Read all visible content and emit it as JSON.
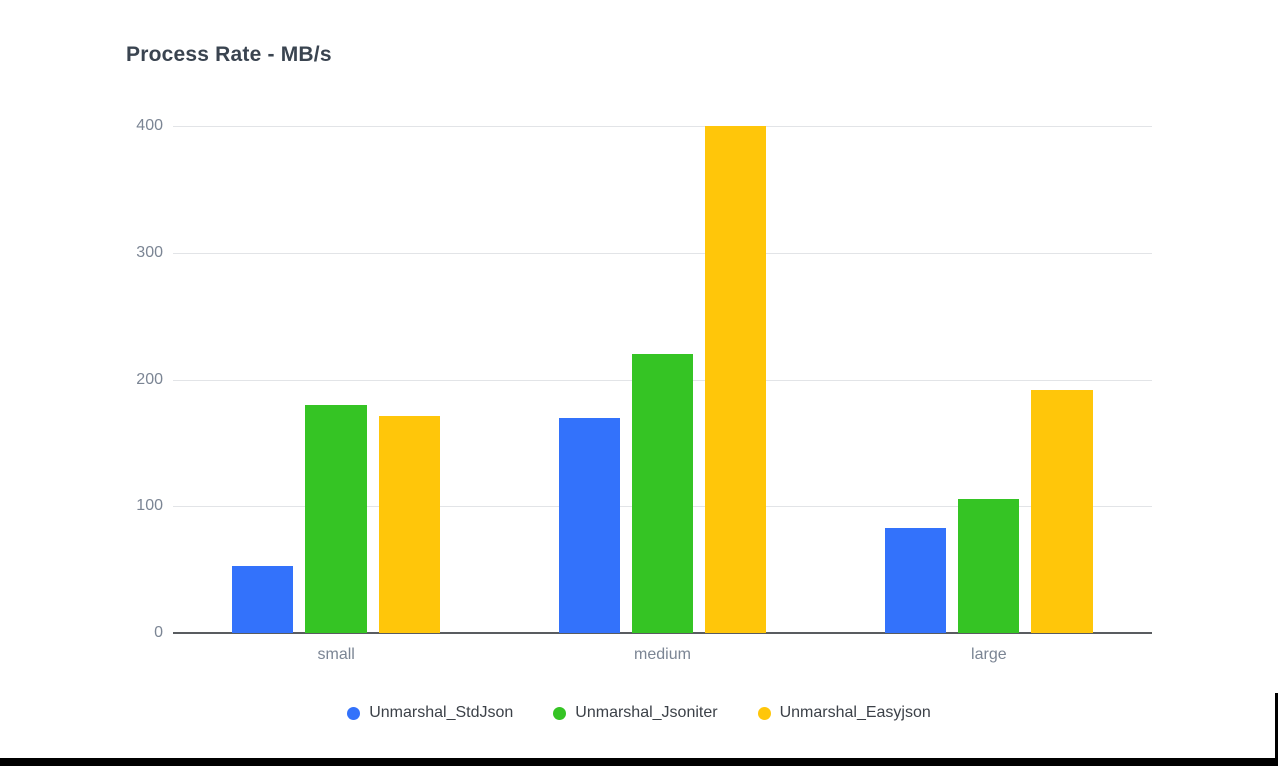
{
  "title": "Process Rate - MB/s",
  "chart_data": {
    "type": "bar",
    "title": "Process Rate - MB/s",
    "xlabel": "",
    "ylabel": "MB/s",
    "categories": [
      "small",
      "medium",
      "large"
    ],
    "series": [
      {
        "name": "Unmarshal_StdJson",
        "color": "#3372fb",
        "values": [
          53,
          170,
          83
        ]
      },
      {
        "name": "Unmarshal_Jsoniter",
        "color": "#35c424",
        "values": [
          180,
          220,
          106
        ]
      },
      {
        "name": "Unmarshal_Easyjson",
        "color": "#ffc60a",
        "values": [
          171,
          400,
          192
        ]
      }
    ],
    "ylim": [
      0,
      400
    ],
    "yticks": [
      0,
      100,
      200,
      300,
      400
    ],
    "grid": true,
    "legend_position": "bottom"
  },
  "colors": {
    "title_text": "#3a4450",
    "axis_label_text": "#7b8594",
    "legend_text": "#3c4148",
    "gridline": "#e2e4e7",
    "baseline": "#595c60",
    "background": "#ffffff",
    "screen_edge": "#000000"
  }
}
